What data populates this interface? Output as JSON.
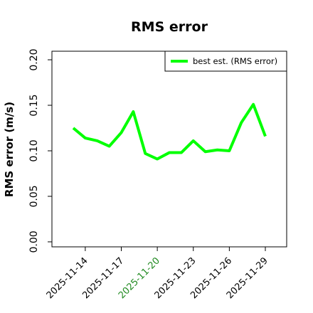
{
  "chart_data": {
    "type": "line",
    "title": "RMS error",
    "y_label": "RMS error (m/s)",
    "x": [
      "2025-11-13",
      "2025-11-14",
      "2025-11-15",
      "2025-11-16",
      "2025-11-17",
      "2025-11-18",
      "2025-11-19",
      "2025-11-20",
      "2025-11-21",
      "2025-11-22",
      "2025-11-23",
      "2025-11-24",
      "2025-11-25",
      "2025-11-26",
      "2025-11-27",
      "2025-11-28",
      "2025-11-29"
    ],
    "series": [
      {
        "name": "best est. (RMS error)",
        "color": "#00ff00",
        "values": [
          0.125,
          0.114,
          0.111,
          0.105,
          0.12,
          0.143,
          0.097,
          0.091,
          0.098,
          0.098,
          0.111,
          0.099,
          0.101,
          0.1,
          0.131,
          0.151,
          0.116
        ]
      }
    ],
    "xlim": [
      "2025-11-11T05:20",
      "2025-11-30T18:40"
    ],
    "xticks": [
      "2025-11-14",
      "2025-11-17",
      "2025-11-20",
      "2025-11-23",
      "2025-11-26",
      "2025-11-29"
    ],
    "xtick_colors": [
      "#000000",
      "#000000",
      "#228b22",
      "#000000",
      "#000000",
      "#000000"
    ],
    "ylim": [
      -0.0055,
      0.2094
    ],
    "yticks": [
      {
        "value": 0,
        "label": "0.00"
      },
      {
        "value": 0.05,
        "label": "0.05"
      },
      {
        "value": 0.1,
        "label": "0.10"
      },
      {
        "value": 0.15,
        "label": "0.15"
      },
      {
        "value": 0.2,
        "label": "0.20"
      }
    ],
    "legend": "upper right",
    "grid": false
  }
}
